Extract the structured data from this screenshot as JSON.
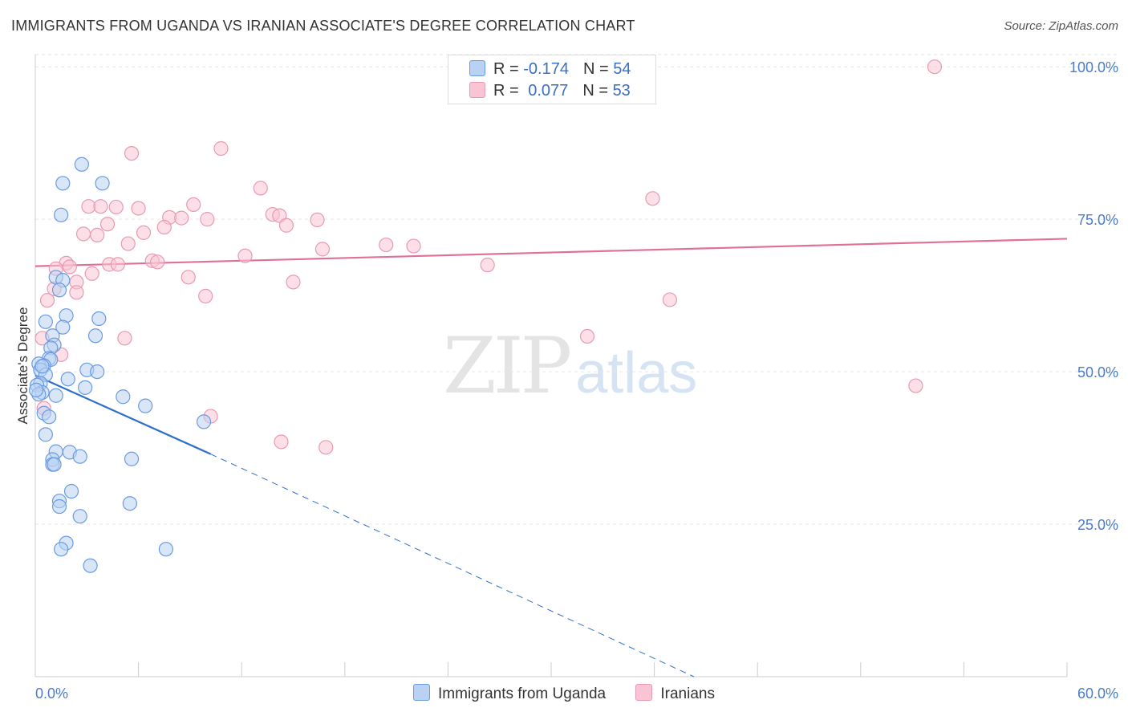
{
  "title": "IMMIGRANTS FROM UGANDA VS IRANIAN ASSOCIATE'S DEGREE CORRELATION CHART",
  "source": "Source: ZipAtlas.com",
  "watermark": {
    "zip": "ZIP",
    "atlas": "atlas"
  },
  "legend_top": {
    "uganda": {
      "r_label": "R =",
      "r_value": "-0.174",
      "n_label": "N =",
      "n_value": "54"
    },
    "iranians": {
      "r_label": "R =",
      "r_value": "0.077",
      "n_label": "N =",
      "n_value": "53"
    }
  },
  "legend_bottom": {
    "uganda": "Immigrants from Uganda",
    "iranians": "Iranians"
  },
  "chart_data": {
    "type": "scatter",
    "title": "IMMIGRANTS FROM UGANDA VS IRANIAN ASSOCIATE'S DEGREE CORRELATION CHART",
    "xlabel": "",
    "ylabel": "Associate's Degree",
    "xlim": [
      0,
      60
    ],
    "ylim": [
      0,
      102
    ],
    "x_tick_labels": [
      "0.0%",
      "60.0%"
    ],
    "y_ticks": [
      25,
      50,
      75,
      100
    ],
    "y_tick_labels": [
      "25.0%",
      "50.0%",
      "75.0%",
      "100.0%"
    ],
    "grid": true,
    "legend_position": "top-center",
    "colors": {
      "uganda_fill": "#b9d1f3",
      "uganda_stroke": "#6a9be0",
      "uganda_line": "#2d6fcc",
      "iranians_fill": "#f9c4d4",
      "iranians_stroke": "#e89ab2",
      "iranians_line": "#e0709a",
      "grid": "#e6e6e6",
      "axis": "#cccccc"
    },
    "series": [
      {
        "name": "Immigrants from Uganda",
        "r": -0.174,
        "n": 54,
        "points": [
          [
            2.7,
            84.0
          ],
          [
            1.6,
            80.9
          ],
          [
            3.9,
            80.9
          ],
          [
            1.5,
            75.7
          ],
          [
            1.2,
            65.5
          ],
          [
            1.6,
            65.0
          ],
          [
            1.4,
            63.4
          ],
          [
            1.8,
            59.2
          ],
          [
            3.7,
            58.7
          ],
          [
            0.6,
            58.2
          ],
          [
            1.6,
            57.3
          ],
          [
            1.0,
            55.9
          ],
          [
            3.5,
            55.9
          ],
          [
            1.1,
            54.4
          ],
          [
            0.9,
            53.9
          ],
          [
            0.8,
            52.2
          ],
          [
            0.9,
            52.0
          ],
          [
            0.2,
            51.3
          ],
          [
            0.5,
            51.0
          ],
          [
            0.3,
            50.3
          ],
          [
            3.0,
            50.3
          ],
          [
            3.6,
            50.0
          ],
          [
            0.6,
            49.5
          ],
          [
            1.9,
            48.8
          ],
          [
            0.3,
            48.1
          ],
          [
            0.1,
            47.8
          ],
          [
            2.9,
            47.4
          ],
          [
            0.4,
            46.6
          ],
          [
            0.2,
            46.3
          ],
          [
            1.2,
            46.1
          ],
          [
            5.1,
            45.9
          ],
          [
            6.4,
            44.4
          ],
          [
            0.5,
            43.2
          ],
          [
            0.8,
            42.6
          ],
          [
            9.8,
            41.8
          ],
          [
            0.6,
            39.7
          ],
          [
            1.2,
            36.9
          ],
          [
            2.0,
            36.8
          ],
          [
            2.6,
            36.1
          ],
          [
            5.6,
            35.7
          ],
          [
            1.0,
            35.6
          ],
          [
            1.0,
            34.8
          ],
          [
            1.1,
            34.8
          ],
          [
            2.1,
            30.4
          ],
          [
            1.4,
            28.8
          ],
          [
            1.4,
            27.9
          ],
          [
            5.5,
            28.4
          ],
          [
            2.6,
            26.3
          ],
          [
            1.8,
            21.9
          ],
          [
            1.5,
            20.9
          ],
          [
            7.6,
            20.9
          ],
          [
            3.2,
            18.2
          ],
          [
            0.05,
            47.0
          ],
          [
            0.4,
            50.9
          ]
        ],
        "trend": {
          "x": [
            0,
            10.2
          ],
          "y": [
            49.4,
            36.5
          ]
        },
        "trend_extrapolated": {
          "x": [
            10.2,
            38.3
          ],
          "y": [
            36.5,
            0.0
          ]
        }
      },
      {
        "name": "Iranians",
        "r": 0.077,
        "n": 53,
        "points": [
          [
            52.3,
            100.0
          ],
          [
            5.6,
            85.8
          ],
          [
            10.8,
            86.6
          ],
          [
            13.1,
            80.1
          ],
          [
            35.9,
            78.4
          ],
          [
            3.1,
            77.1
          ],
          [
            3.8,
            77.1
          ],
          [
            4.7,
            77.0
          ],
          [
            6.0,
            76.8
          ],
          [
            9.2,
            77.4
          ],
          [
            13.8,
            75.8
          ],
          [
            14.2,
            75.6
          ],
          [
            7.8,
            75.3
          ],
          [
            8.5,
            75.2
          ],
          [
            10.0,
            75.0
          ],
          [
            16.4,
            74.9
          ],
          [
            4.2,
            74.2
          ],
          [
            14.6,
            74.0
          ],
          [
            7.5,
            73.7
          ],
          [
            2.8,
            72.6
          ],
          [
            3.6,
            72.4
          ],
          [
            6.3,
            72.8
          ],
          [
            5.4,
            71.0
          ],
          [
            20.4,
            70.8
          ],
          [
            22.0,
            70.6
          ],
          [
            16.7,
            70.1
          ],
          [
            12.2,
            69.0
          ],
          [
            6.8,
            68.2
          ],
          [
            7.1,
            68.0
          ],
          [
            1.8,
            67.8
          ],
          [
            4.3,
            67.6
          ],
          [
            4.8,
            67.6
          ],
          [
            2.0,
            67.2
          ],
          [
            1.2,
            66.9
          ],
          [
            26.3,
            67.5
          ],
          [
            3.3,
            66.1
          ],
          [
            8.9,
            65.5
          ],
          [
            15.0,
            64.7
          ],
          [
            2.4,
            64.7
          ],
          [
            1.1,
            63.6
          ],
          [
            2.4,
            63.0
          ],
          [
            9.9,
            62.4
          ],
          [
            36.9,
            61.8
          ],
          [
            0.7,
            61.7
          ],
          [
            32.1,
            55.8
          ],
          [
            5.2,
            55.5
          ],
          [
            0.4,
            55.5
          ],
          [
            1.5,
            52.8
          ],
          [
            51.2,
            47.7
          ],
          [
            10.2,
            42.7
          ],
          [
            14.3,
            38.5
          ],
          [
            16.9,
            37.6
          ],
          [
            0.5,
            44.0
          ]
        ],
        "trend": {
          "x": [
            0,
            60
          ],
          "y": [
            67.3,
            71.8
          ]
        }
      }
    ]
  }
}
